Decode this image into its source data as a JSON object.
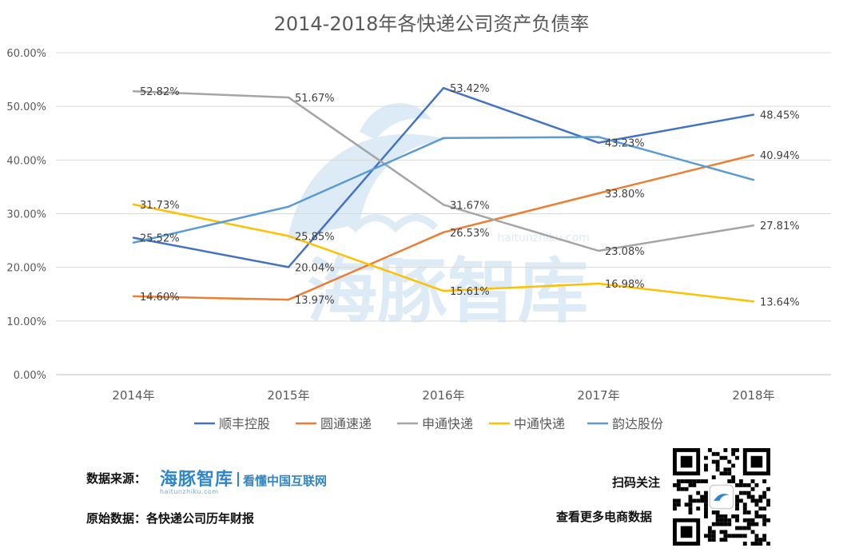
{
  "chart_data": {
    "type": "line",
    "title": "2014-2018年各快递公司资产负债率",
    "categories": [
      "2014年",
      "2015年",
      "2016年",
      "2017年",
      "2018年"
    ],
    "ylim": [
      0,
      60
    ],
    "yticks": [
      0,
      10,
      20,
      30,
      40,
      50,
      60
    ],
    "ytick_labels": [
      "0.00%",
      "10.00%",
      "20.00%",
      "30.00%",
      "40.00%",
      "50.00%",
      "60.00%"
    ],
    "grid": true,
    "legend_position": "bottom",
    "series": [
      {
        "name": "顺丰控股",
        "color": "#4472c4",
        "values": [
          25.52,
          20.04,
          53.42,
          43.23,
          48.45
        ],
        "labels": [
          "25.52%",
          "20.04%",
          "53.42%",
          "43.23%",
          "48.45%"
        ]
      },
      {
        "name": "圆通速递",
        "color": "#ed7d31",
        "values": [
          14.6,
          13.97,
          26.53,
          33.8,
          40.94
        ],
        "labels": [
          "14.60%",
          "13.97%",
          "26.53%",
          "33.80%",
          "40.94%"
        ]
      },
      {
        "name": "申通快递",
        "color": "#a5a5a5",
        "values": [
          52.82,
          51.67,
          31.67,
          23.08,
          27.81
        ],
        "labels": [
          "52.82%",
          "51.67%",
          "31.67%",
          "23.08%",
          "27.81%"
        ]
      },
      {
        "name": "中通快递",
        "color": "#ffc000",
        "values": [
          31.73,
          25.85,
          15.61,
          16.98,
          13.64
        ],
        "labels": [
          "31.73%",
          "25.85%",
          "15.61%",
          "16.98%",
          "13.64%"
        ]
      },
      {
        "name": "韵达股份",
        "color": "#5b9bd5",
        "values": [
          24.6,
          31.3,
          44.1,
          44.3,
          36.3
        ],
        "labels": []
      }
    ]
  },
  "watermark": {
    "text": "海豚智库",
    "url": "haitunzhiku.com"
  },
  "footer": {
    "source_label": "数据来源：",
    "brand_name": "海豚智库",
    "brand_slogan": "看懂中国互联网",
    "brand_url": "haitunzhiku.com",
    "raw_data": "原始数据：各快递公司历年财报",
    "scan_text": "扫码关注",
    "more_text": "查看更多电商数据"
  }
}
